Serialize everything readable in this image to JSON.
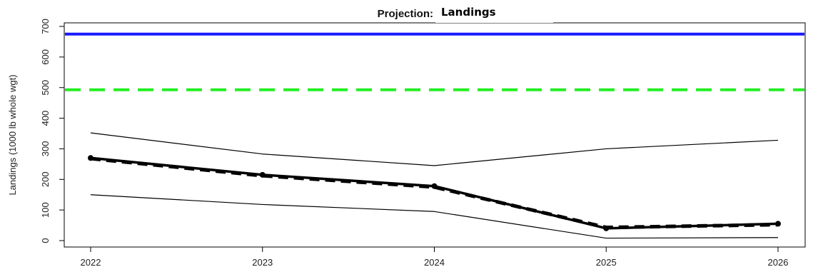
{
  "chart_data": {
    "type": "line",
    "title_prefix": "Projection:",
    "title": "Landings",
    "ylabel": "Landings (1000 lb whole wgt)",
    "xlim": [
      2022,
      2026
    ],
    "ylim": [
      0,
      700
    ],
    "x_ticks": [
      2022,
      2023,
      2024,
      2025,
      2026
    ],
    "y_ticks": [
      0,
      100,
      200,
      300,
      400,
      500,
      600,
      700
    ],
    "x": [
      2022,
      2023,
      2024,
      2025,
      2026
    ],
    "series": [
      {
        "values": [
          270,
          215,
          178,
          40,
          55
        ],
        "color": "#000000",
        "style": "thick"
      },
      {
        "values": [
          268,
          212,
          175,
          43,
          52
        ],
        "color": "#000000",
        "style": "thick-dashed"
      },
      {
        "values": [
          352,
          283,
          245,
          300,
          328
        ],
        "color": "#000000",
        "style": "thin"
      },
      {
        "values": [
          150,
          118,
          95,
          8,
          10
        ],
        "color": "#000000",
        "style": "thin"
      }
    ],
    "reference_lines": [
      {
        "value": 675,
        "color": "#1a1aff",
        "style": "solid"
      },
      {
        "value": 493,
        "color": "#22ee22",
        "style": "dashed"
      }
    ]
  }
}
